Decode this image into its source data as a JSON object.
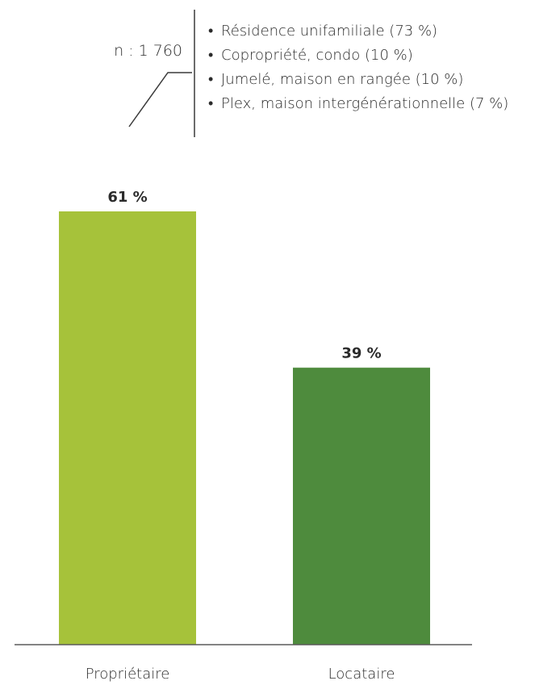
{
  "chart_data": {
    "type": "bar",
    "sample": "n : 1 760",
    "annotation_items": [
      "Résidence unifamiliale (73 %)",
      "Copropriété, condo (10 %)",
      "Jumelé, maison en rangée (10 %)",
      "Plex, maison intergénérationnelle (7 %)"
    ],
    "annotation_bullet": "•",
    "categories": [
      "Propriétaire",
      "Locataire"
    ],
    "values": [
      61,
      39
    ],
    "value_labels": [
      "61 %",
      "39 %"
    ],
    "colors": [
      "#a6c23a",
      "#4e8b3d"
    ],
    "baseline_color": "#5a5a5a",
    "line_color": "#3a3a3a",
    "ylim": [
      0,
      61
    ],
    "grid": false,
    "legend": "none"
  }
}
